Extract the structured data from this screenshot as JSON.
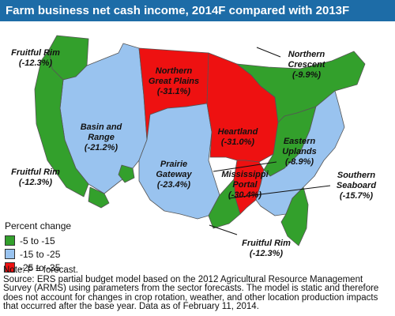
{
  "title": "Farm business net cash income, 2014F compared with 2013F",
  "colors": {
    "title_bg": "#1d6ca7",
    "green": "#33a02c",
    "blue": "#99c3ef",
    "red": "#ee1111",
    "border": "#555555"
  },
  "regions": [
    {
      "key": "fruitful_rim_nw",
      "name": "Fruitful Rim",
      "value": "(-12.3%)",
      "category": "green"
    },
    {
      "key": "basin_range",
      "name": "Basin and Range",
      "name_lines": [
        "Basin and",
        "Range"
      ],
      "value": "(-21.2%)",
      "category": "blue"
    },
    {
      "key": "fruitful_rim_w",
      "name": "Fruitful Rim",
      "value": "(-12.3%)",
      "category": "green"
    },
    {
      "key": "northern_great_plains",
      "name": "Northern Great Plains",
      "name_lines": [
        "Northern",
        "Great Plains"
      ],
      "value": "(-31.1%)",
      "category": "red"
    },
    {
      "key": "prairie_gateway",
      "name": "Prairie Gateway",
      "name_lines": [
        "Prairie",
        "Gateway"
      ],
      "value": "(-23.4%)",
      "category": "blue"
    },
    {
      "key": "heartland",
      "name": "Heartland",
      "value": "(-31.0%)",
      "category": "red"
    },
    {
      "key": "northern_crescent",
      "name": "Northern Crescent",
      "name_lines": [
        "Northern",
        "Crescent"
      ],
      "value": "(-9.9%)",
      "category": "green"
    },
    {
      "key": "eastern_uplands",
      "name": "Eastern Uplands",
      "name_lines": [
        "Eastern",
        "Uplands"
      ],
      "value": "(-8.9%)",
      "category": "green"
    },
    {
      "key": "mississippi_portal",
      "name": "Mississippi Portal",
      "name_lines": [
        "Mississippi",
        "Portal"
      ],
      "value": "(-30.4%)",
      "category": "red"
    },
    {
      "key": "southern_seaboard",
      "name": "Southern Seaboard",
      "name_lines": [
        "Southern",
        "Seaboard"
      ],
      "value": "(-15.7%)",
      "category": "blue"
    },
    {
      "key": "fruitful_rim_s",
      "name": "Fruitful Rim",
      "value": "(-12.3%)",
      "category": "green"
    }
  ],
  "legend": {
    "title": "Percent change",
    "items": [
      {
        "label": "-5 to -15",
        "color": "#33a02c"
      },
      {
        "label": "-15 to -25",
        "color": "#99c3ef"
      },
      {
        "label": "-25 to -35",
        "color": "#ee1111"
      }
    ]
  },
  "notes": {
    "note": "Note: F = forecast.",
    "source": "Source: ERS partial budget model based on the 2012 Agricultural Resource Management Survey (ARMS) using parameters from the sector forecasts. The model is static and therefore does not account for changes in crop rotation, weather, and other location production impacts that occurred after the base year. Data as of February 11, 2014."
  }
}
